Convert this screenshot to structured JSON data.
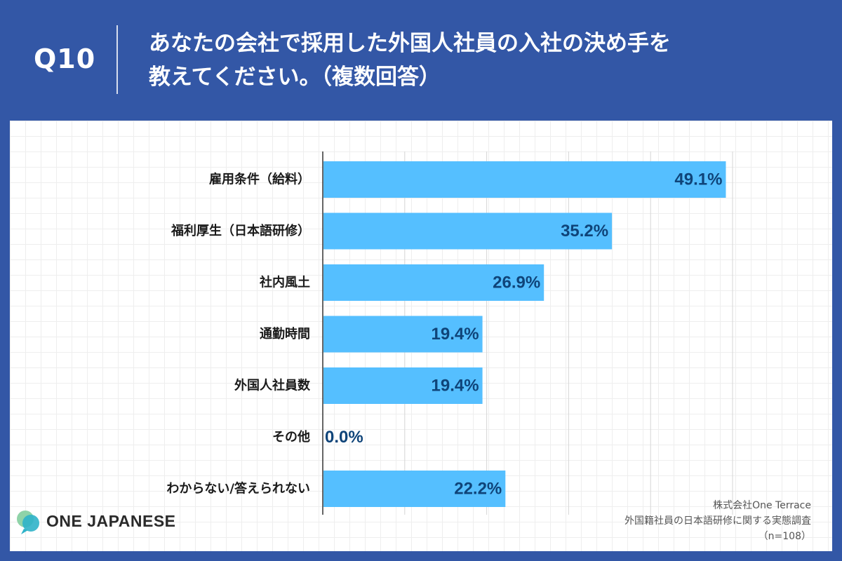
{
  "header": {
    "question_number": "Q10",
    "title_line1": "あなたの会社で採用した外国人社員の入社の決め手を",
    "title_line2": "教えてください。（複数回答）"
  },
  "chart_data": {
    "type": "bar",
    "orientation": "horizontal",
    "categories": [
      "雇用条件（給料）",
      "福利厚生（日本語研修）",
      "社内風土",
      "通勤時間",
      "外国人社員数",
      "その他",
      "わからない/答えられない"
    ],
    "values": [
      49.1,
      35.2,
      26.9,
      19.4,
      19.4,
      0.0,
      22.2
    ],
    "value_labels": [
      "49.1%",
      "35.2%",
      "26.9%",
      "19.4%",
      "19.4%",
      "0.0%",
      "22.2%"
    ],
    "xlim": [
      0,
      50
    ],
    "grid": true,
    "bar_color": "#55bfff",
    "label_color": "#0f4479"
  },
  "logo": {
    "text": "ONE JAPANESE"
  },
  "source": {
    "line1": "株式会社One Terrace",
    "line2": "外国籍社員の日本語研修に関する実態調査",
    "line3": "（n=108）"
  },
  "colors": {
    "background": "#3357a6",
    "bar": "#55bfff",
    "value_text": "#0f4479"
  }
}
